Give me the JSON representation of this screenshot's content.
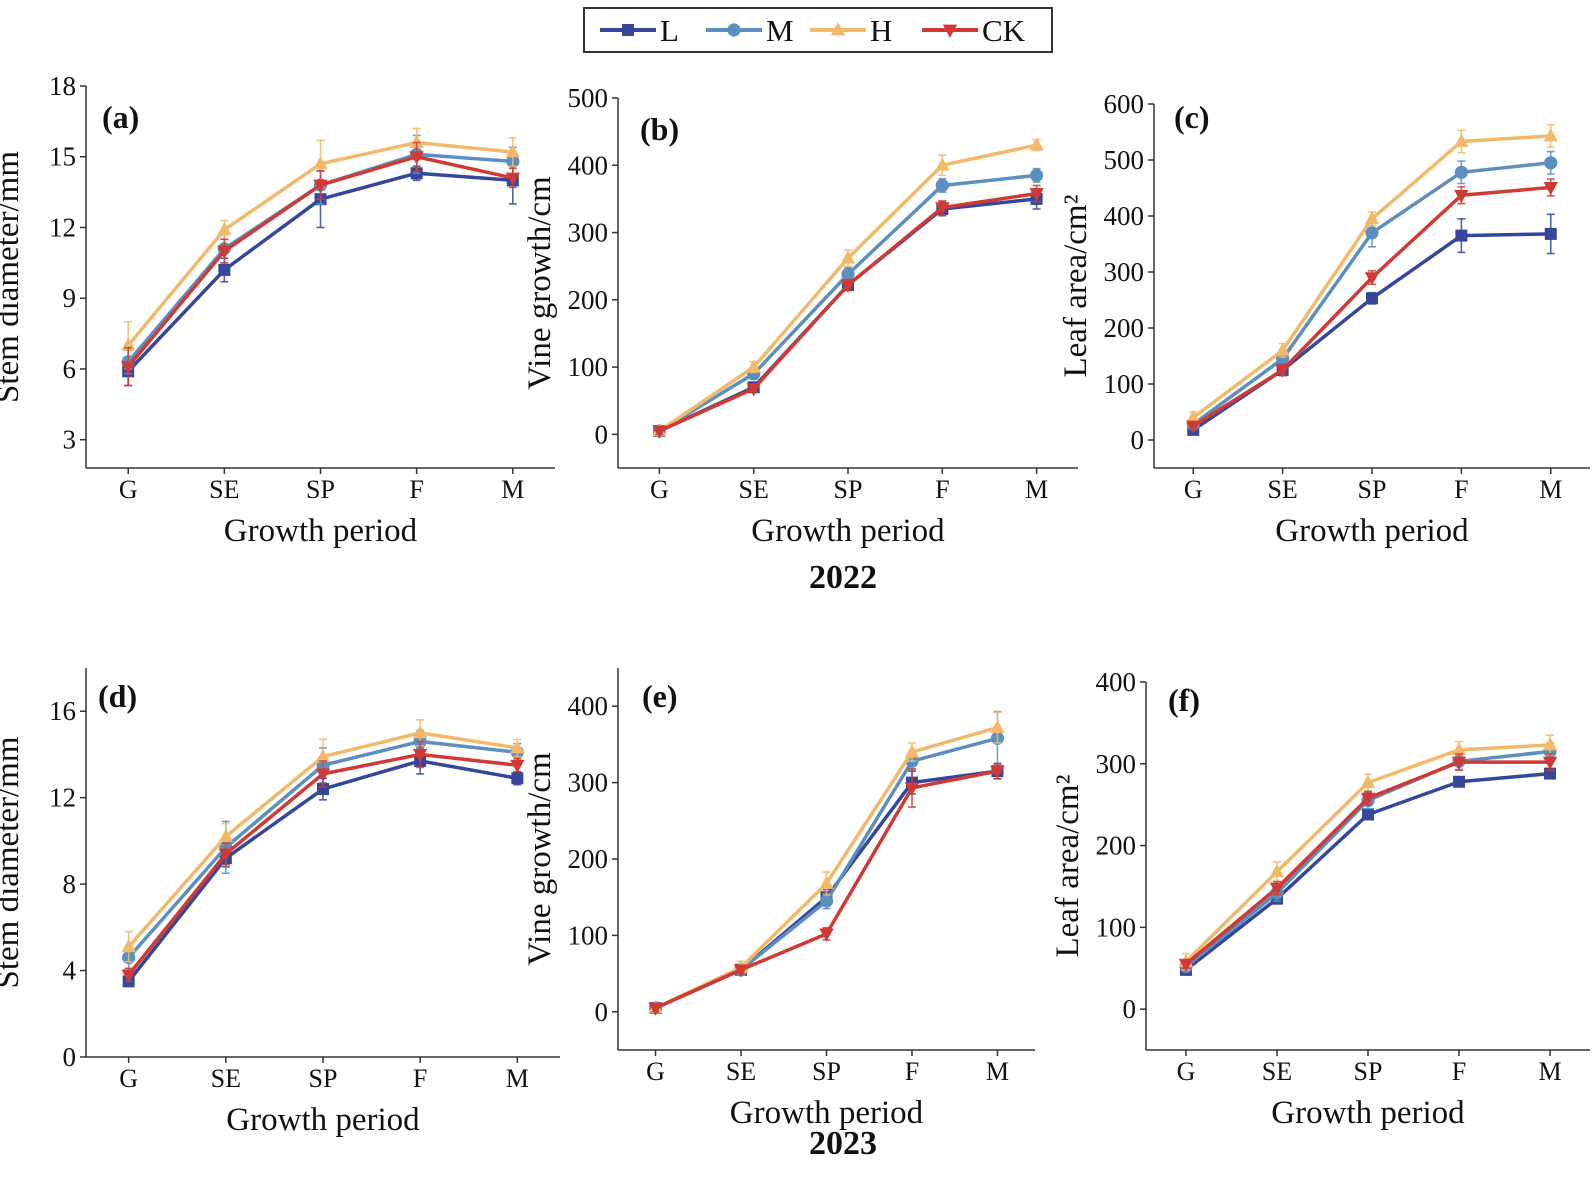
{
  "legend": {
    "entries": [
      {
        "label": "L",
        "color": "#34479a",
        "marker": "square"
      },
      {
        "label": "M",
        "color": "#5b8fc0",
        "marker": "circle"
      },
      {
        "label": "H",
        "color": "#f3b96b",
        "marker": "triangle-up"
      },
      {
        "label": "CK",
        "color": "#d03a34",
        "marker": "triangle-down"
      }
    ]
  },
  "year_labels": [
    "2022",
    "2023"
  ],
  "chart_data": [
    {
      "type": "line",
      "panel": "(a)",
      "year": "2022",
      "xlabel": "Growth period",
      "ylabel": "Stem diameter/mm",
      "categories": [
        "G",
        "SE",
        "SP",
        "F",
        "M"
      ],
      "ylim": [
        1.8,
        18
      ],
      "yticks": [
        3,
        6,
        9,
        12,
        15,
        18
      ],
      "series": [
        {
          "name": "L",
          "values": [
            5.9,
            10.2,
            13.2,
            14.3,
            14.0
          ],
          "errors": [
            0.6,
            0.5,
            1.2,
            0.3,
            1.0
          ]
        },
        {
          "name": "M",
          "values": [
            6.3,
            11.1,
            13.8,
            15.1,
            14.8
          ],
          "errors": [
            0.5,
            0.6,
            0.8,
            0.8,
            0.6
          ]
        },
        {
          "name": "H",
          "values": [
            7.0,
            11.9,
            14.7,
            15.6,
            15.2
          ],
          "errors": [
            1.0,
            0.4,
            1.0,
            0.6,
            0.6
          ]
        },
        {
          "name": "CK",
          "values": [
            6.1,
            11.0,
            13.8,
            15.0,
            14.1
          ],
          "errors": [
            0.8,
            0.5,
            0.6,
            0.6,
            0.4
          ]
        }
      ]
    },
    {
      "type": "line",
      "panel": "(b)",
      "year": "2022",
      "xlabel": "Growth period",
      "ylabel": "Vine growth/cm",
      "categories": [
        "G",
        "SE",
        "SP",
        "F",
        "M"
      ],
      "ylim": [
        -50,
        500
      ],
      "yticks": [
        0,
        100,
        200,
        300,
        400,
        500
      ],
      "series": [
        {
          "name": "L",
          "values": [
            5,
            70,
            222,
            335,
            350
          ],
          "errors": [
            5,
            5,
            8,
            10,
            15
          ]
        },
        {
          "name": "M",
          "values": [
            5,
            90,
            238,
            370,
            385
          ],
          "errors": [
            5,
            8,
            10,
            10,
            10
          ]
        },
        {
          "name": "H",
          "values": [
            5,
            100,
            262,
            400,
            430
          ],
          "errors": [
            5,
            8,
            12,
            15,
            8
          ]
        },
        {
          "name": "CK",
          "values": [
            5,
            68,
            222,
            337,
            358
          ],
          "errors": [
            5,
            5,
            8,
            10,
            12
          ]
        }
      ]
    },
    {
      "type": "line",
      "panel": "(c)",
      "year": "2022",
      "xlabel": "Growth period",
      "ylabel": "Leaf area/cm²",
      "categories": [
        "G",
        "SE",
        "SP",
        "F",
        "M"
      ],
      "ylim": [
        -50,
        600
      ],
      "yticks": [
        0,
        100,
        200,
        300,
        400,
        500,
        600
      ],
      "series": [
        {
          "name": "L",
          "values": [
            18,
            125,
            253,
            365,
            368
          ],
          "errors": [
            5,
            10,
            10,
            30,
            35
          ]
        },
        {
          "name": "M",
          "values": [
            28,
            145,
            370,
            478,
            495
          ],
          "errors": [
            8,
            12,
            25,
            20,
            20
          ]
        },
        {
          "name": "H",
          "values": [
            40,
            160,
            395,
            533,
            543
          ],
          "errors": [
            10,
            12,
            12,
            20,
            20
          ]
        },
        {
          "name": "CK",
          "values": [
            25,
            125,
            290,
            437,
            451
          ],
          "errors": [
            5,
            10,
            12,
            15,
            15
          ]
        }
      ]
    },
    {
      "type": "line",
      "panel": "(d)",
      "year": "2023",
      "xlabel": "Growth period",
      "ylabel": "Stem diameter/mm",
      "categories": [
        "G",
        "SE",
        "SP",
        "F",
        "M"
      ],
      "ylim": [
        0,
        18
      ],
      "yticks": [
        0,
        4,
        8,
        12,
        16
      ],
      "series": [
        {
          "name": "L",
          "values": [
            3.5,
            9.2,
            12.4,
            13.7,
            12.9
          ],
          "errors": [
            0.2,
            0.4,
            0.5,
            0.6,
            0.3
          ]
        },
        {
          "name": "M",
          "values": [
            4.6,
            9.7,
            13.5,
            14.6,
            14.1
          ],
          "errors": [
            0.5,
            1.2,
            0.8,
            0.5,
            0.4
          ]
        },
        {
          "name": "H",
          "values": [
            5.1,
            10.2,
            13.9,
            15.0,
            14.3
          ],
          "errors": [
            0.7,
            0.6,
            0.8,
            0.6,
            0.4
          ]
        },
        {
          "name": "CK",
          "values": [
            3.8,
            9.4,
            13.1,
            14.0,
            13.5
          ],
          "errors": [
            0.3,
            0.5,
            0.6,
            0.6,
            0.3
          ]
        }
      ]
    },
    {
      "type": "line",
      "panel": "(e)",
      "year": "2023",
      "xlabel": "Growth period",
      "ylabel": "Vine growth/cm",
      "categories": [
        "G",
        "SE",
        "SP",
        "F",
        "M"
      ],
      "ylim": [
        -50,
        450
      ],
      "yticks": [
        0,
        100,
        200,
        300,
        400
      ],
      "series": [
        {
          "name": "L",
          "values": [
            5,
            55,
            150,
            300,
            315
          ],
          "errors": [
            5,
            5,
            10,
            15,
            10
          ]
        },
        {
          "name": "M",
          "values": [
            5,
            55,
            145,
            328,
            358
          ],
          "errors": [
            5,
            5,
            10,
            12,
            35
          ]
        },
        {
          "name": "H",
          "values": [
            5,
            58,
            168,
            340,
            372
          ],
          "errors": [
            5,
            8,
            15,
            12,
            20
          ]
        },
        {
          "name": "CK",
          "values": [
            5,
            55,
            102,
            293,
            315
          ],
          "errors": [
            5,
            5,
            8,
            25,
            10
          ]
        }
      ]
    },
    {
      "type": "line",
      "panel": "(f)",
      "year": "2023",
      "xlabel": "Growth period",
      "ylabel": "Leaf area/cm²",
      "categories": [
        "G",
        "SE",
        "SP",
        "F",
        "M"
      ],
      "ylim": [
        -50,
        400
      ],
      "yticks": [
        0,
        100,
        200,
        300,
        400
      ],
      "series": [
        {
          "name": "L",
          "values": [
            48,
            135,
            238,
            278,
            288
          ],
          "errors": [
            5,
            5,
            5,
            5,
            5
          ]
        },
        {
          "name": "M",
          "values": [
            52,
            142,
            255,
            303,
            315
          ],
          "errors": [
            5,
            10,
            10,
            10,
            10
          ]
        },
        {
          "name": "H",
          "values": [
            58,
            168,
            277,
            317,
            323
          ],
          "errors": [
            10,
            12,
            10,
            10,
            12
          ]
        },
        {
          "name": "CK",
          "values": [
            55,
            148,
            258,
            302,
            302
          ],
          "errors": [
            5,
            8,
            8,
            10,
            10
          ]
        }
      ]
    }
  ]
}
